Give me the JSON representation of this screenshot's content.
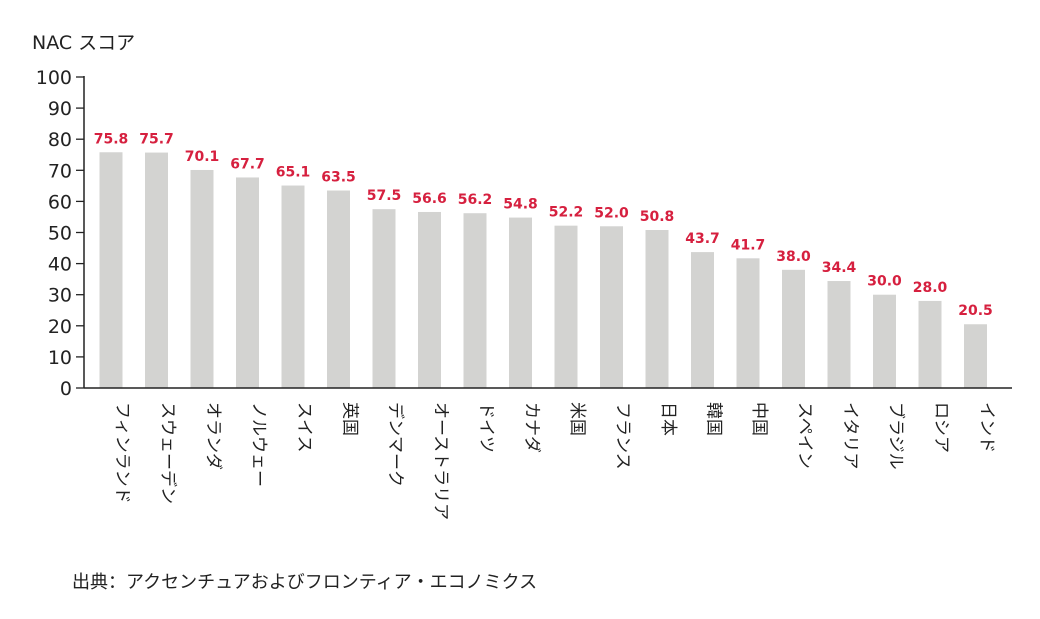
{
  "chart_data": {
    "type": "bar",
    "title": "",
    "xlabel": "",
    "ylabel": "NAC スコア",
    "ylim": [
      0,
      100
    ],
    "yticks": [
      0,
      10,
      20,
      30,
      40,
      50,
      60,
      70,
      80,
      90,
      100
    ],
    "grid": false,
    "categories": [
      "フィンランド",
      "スウェーデン",
      "オランダ",
      "ノルウェー",
      "スイス",
      "英国",
      "デンマーク",
      "オーストラリア",
      "ドイツ",
      "カナダ",
      "米国",
      "フランス",
      "日本",
      "韓国",
      "中国",
      "スペイン",
      "イタリア",
      "ブラジル",
      "ロシア",
      "インド"
    ],
    "values": [
      75.8,
      75.7,
      70.1,
      67.7,
      65.1,
      63.5,
      57.5,
      56.6,
      56.2,
      54.8,
      52.2,
      52.0,
      50.8,
      43.7,
      41.7,
      38.0,
      34.4,
      30.0,
      28.0,
      20.5
    ],
    "value_labels": [
      "75.8",
      "75.7",
      "70.1",
      "67.7",
      "65.1",
      "63.5",
      "57.5",
      "56.6",
      "56.2",
      "54.8",
      "52.2",
      "52.0",
      "50.8",
      "43.7",
      "41.7",
      "38.0",
      "34.4",
      "30.0",
      "28.0",
      "20.5"
    ],
    "bar_color": "#d3d3d1",
    "value_label_color": "#d6203f",
    "axis_color": "#222222"
  },
  "source": "出典：アクセンチュアおよびフロンティア・エコノミクス"
}
